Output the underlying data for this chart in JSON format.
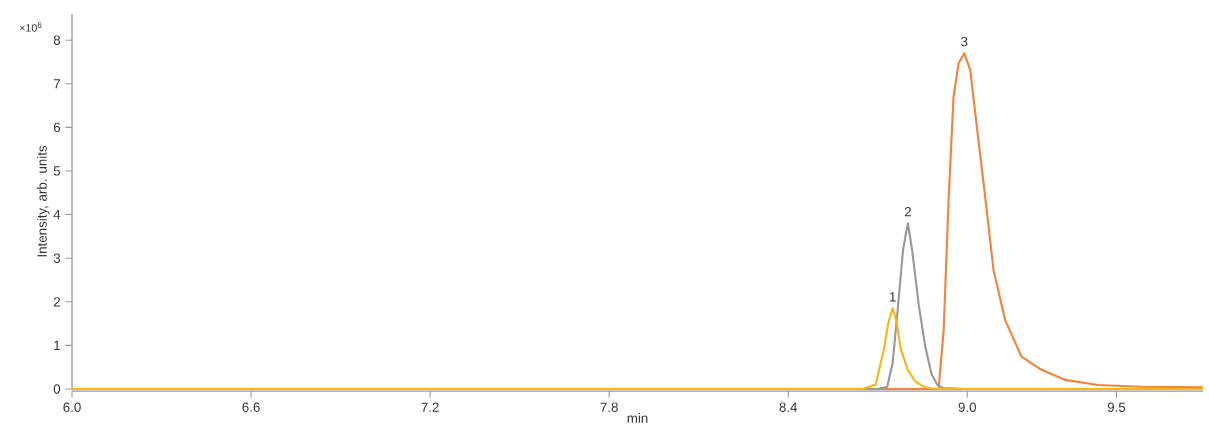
{
  "chart_data": {
    "type": "line",
    "xlabel": "min",
    "ylabel": "Intensity, arb. units",
    "xlim": [
      6.0,
      9.79
    ],
    "ylim": [
      0,
      8.6
    ],
    "xticks": [
      {
        "value": 6.0,
        "label": "6.0"
      },
      6.6,
      7.2,
      7.8,
      8.4,
      {
        "value": 9.0,
        "label": "9.0"
      },
      9.5
    ],
    "yticks": [
      0,
      1,
      2,
      3,
      4,
      5,
      6,
      7,
      8
    ],
    "series": [
      {
        "color": "#fbb416",
        "x": [
          6.0,
          8.65,
          8.693,
          8.705,
          8.721,
          8.735,
          8.75,
          8.763,
          8.777,
          8.8,
          8.825,
          8.849,
          8.87,
          8.893,
          9.0,
          9.79
        ],
        "values": [
          0,
          0,
          0.1,
          0.45,
          0.92,
          1.5,
          1.85,
          1.55,
          0.92,
          0.45,
          0.18,
          0.07,
          0.02,
          0,
          0,
          0
        ]
      },
      {
        "color": "#999999",
        "x": [
          6.0,
          8.7,
          8.732,
          8.75,
          8.768,
          8.785,
          8.801,
          8.815,
          8.838,
          8.86,
          8.88,
          8.899,
          8.92,
          9.0
        ],
        "values": [
          0,
          0,
          0.05,
          0.6,
          1.9,
          3.2,
          3.8,
          3.2,
          1.9,
          0.95,
          0.35,
          0.1,
          0.02,
          0
        ]
      },
      {
        "color": "#f4823c",
        "x": [
          6.0,
          8.904,
          8.921,
          8.938,
          8.954,
          8.971,
          8.99,
          9.01,
          9.032,
          9.06,
          9.088,
          9.127,
          9.182,
          9.249,
          9.327,
          9.438,
          9.582,
          9.79
        ],
        "values": [
          0,
          0,
          1.35,
          4.41,
          6.7,
          7.47,
          7.7,
          7.32,
          6.02,
          4.41,
          2.73,
          1.58,
          0.74,
          0.44,
          0.21,
          0.09,
          0.05,
          0.04
        ]
      }
    ],
    "annotations": [
      {
        "text": "1",
        "x": 8.75,
        "y": 1.85
      },
      {
        "text": "2",
        "x": 8.801,
        "y": 3.8
      },
      {
        "text": "3",
        "x": 8.99,
        "y": 7.7
      },
      "×10$^{6}$"
    ]
  }
}
